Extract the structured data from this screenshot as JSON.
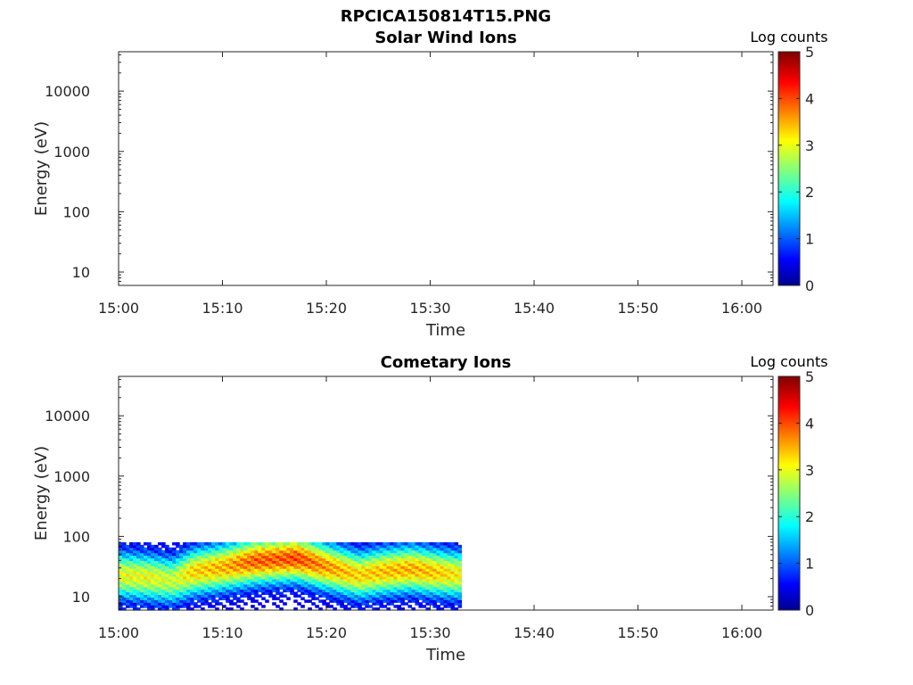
{
  "figure_title": "RPCICA150814T15.PNG",
  "colormap": [
    "#00008f",
    "#0000ff",
    "#00ffff",
    "#ffff00",
    "#ff0000",
    "#800000"
  ],
  "chart_data": [
    {
      "type": "heatmap",
      "title": "Solar Wind Ions",
      "xlabel": "Time",
      "ylabel": "Energy (eV)",
      "yscale": "log",
      "x_ticks": [
        "15:00",
        "15:10",
        "15:20",
        "15:30",
        "15:40",
        "15:50",
        "16:00"
      ],
      "y_ticks": [
        "10",
        "100",
        "1000",
        "10000"
      ],
      "xlim": [
        "15:00",
        "16:03"
      ],
      "ylim": [
        6,
        45000
      ],
      "colorbar": {
        "label": "Log counts",
        "ticks": [
          "0",
          "1",
          "2",
          "3",
          "4",
          "5"
        ],
        "range": [
          0,
          5
        ]
      },
      "data": []
    },
    {
      "type": "heatmap",
      "title": "Cometary Ions",
      "xlabel": "Time",
      "ylabel": "Energy (eV)",
      "yscale": "log",
      "x_ticks": [
        "15:00",
        "15:10",
        "15:20",
        "15:30",
        "15:40",
        "15:50",
        "16:00"
      ],
      "y_ticks": [
        "10",
        "100",
        "1000",
        "10000"
      ],
      "xlim": [
        "15:00",
        "16:03"
      ],
      "ylim": [
        6,
        45000
      ],
      "colorbar": {
        "label": "Log counts",
        "ticks": [
          "0",
          "1",
          "2",
          "3",
          "4",
          "5"
        ],
        "range": [
          0,
          5
        ]
      },
      "data": {
        "time_range": [
          "15:00",
          "15:33"
        ],
        "energy_range_eV": [
          6,
          80
        ],
        "peak_log_counts_by_time": [
          {
            "time": "15:00",
            "energy_eV": 22,
            "log_counts": 3.0
          },
          {
            "time": "15:03",
            "energy_eV": 20,
            "log_counts": 3.0
          },
          {
            "time": "15:05",
            "energy_eV": 18,
            "log_counts": 2.8
          },
          {
            "time": "15:07",
            "energy_eV": 25,
            "log_counts": 3.3
          },
          {
            "time": "15:10",
            "energy_eV": 30,
            "log_counts": 3.5
          },
          {
            "time": "15:13",
            "energy_eV": 38,
            "log_counts": 3.9
          },
          {
            "time": "15:15",
            "energy_eV": 40,
            "log_counts": 3.9
          },
          {
            "time": "15:17",
            "energy_eV": 42,
            "log_counts": 4.0
          },
          {
            "time": "15:20",
            "energy_eV": 30,
            "log_counts": 3.6
          },
          {
            "time": "15:23",
            "energy_eV": 22,
            "log_counts": 3.3
          },
          {
            "time": "15:25",
            "energy_eV": 25,
            "log_counts": 3.4
          },
          {
            "time": "15:28",
            "energy_eV": 28,
            "log_counts": 3.5
          },
          {
            "time": "15:30",
            "energy_eV": 25,
            "log_counts": 3.4
          },
          {
            "time": "15:33",
            "energy_eV": 22,
            "log_counts": 3.1
          }
        ]
      }
    }
  ]
}
